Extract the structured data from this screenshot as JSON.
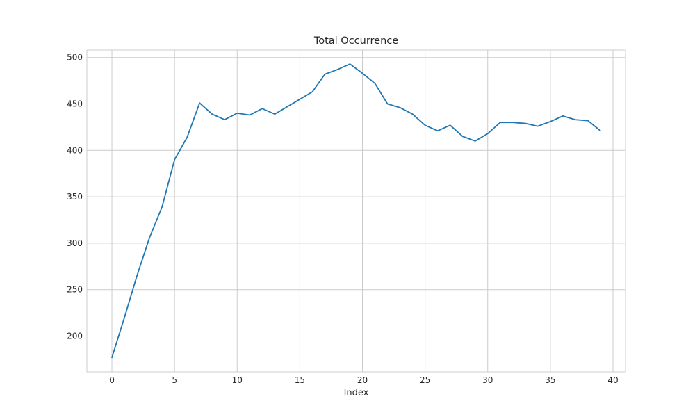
{
  "chart_data": {
    "type": "line",
    "title": "Total Occurrence",
    "xlabel": "Index",
    "ylabel": "",
    "xlim": [
      -2,
      41
    ],
    "ylim": [
      161.5,
      508
    ],
    "xticks": [
      0,
      5,
      10,
      15,
      20,
      25,
      30,
      35,
      40
    ],
    "yticks": [
      200,
      250,
      300,
      350,
      400,
      450,
      500
    ],
    "grid": true,
    "series": [
      {
        "color": "#1f77b4",
        "x": [
          0,
          1,
          2,
          3,
          4,
          5,
          6,
          7,
          8,
          9,
          10,
          11,
          12,
          13,
          14,
          15,
          16,
          17,
          18,
          19,
          20,
          21,
          22,
          23,
          24,
          25,
          26,
          27,
          28,
          29,
          30,
          31,
          32,
          33,
          34,
          35,
          36,
          37,
          38,
          39
        ],
        "y": [
          177,
          220,
          265,
          306,
          339,
          390,
          414,
          451,
          439,
          433,
          440,
          438,
          445,
          439,
          447,
          455,
          463,
          482,
          487,
          493,
          483,
          472,
          450,
          446,
          439,
          427,
          421,
          427,
          415,
          410,
          418,
          430,
          430,
          429,
          426,
          431,
          437,
          433,
          432,
          421
        ]
      }
    ]
  }
}
